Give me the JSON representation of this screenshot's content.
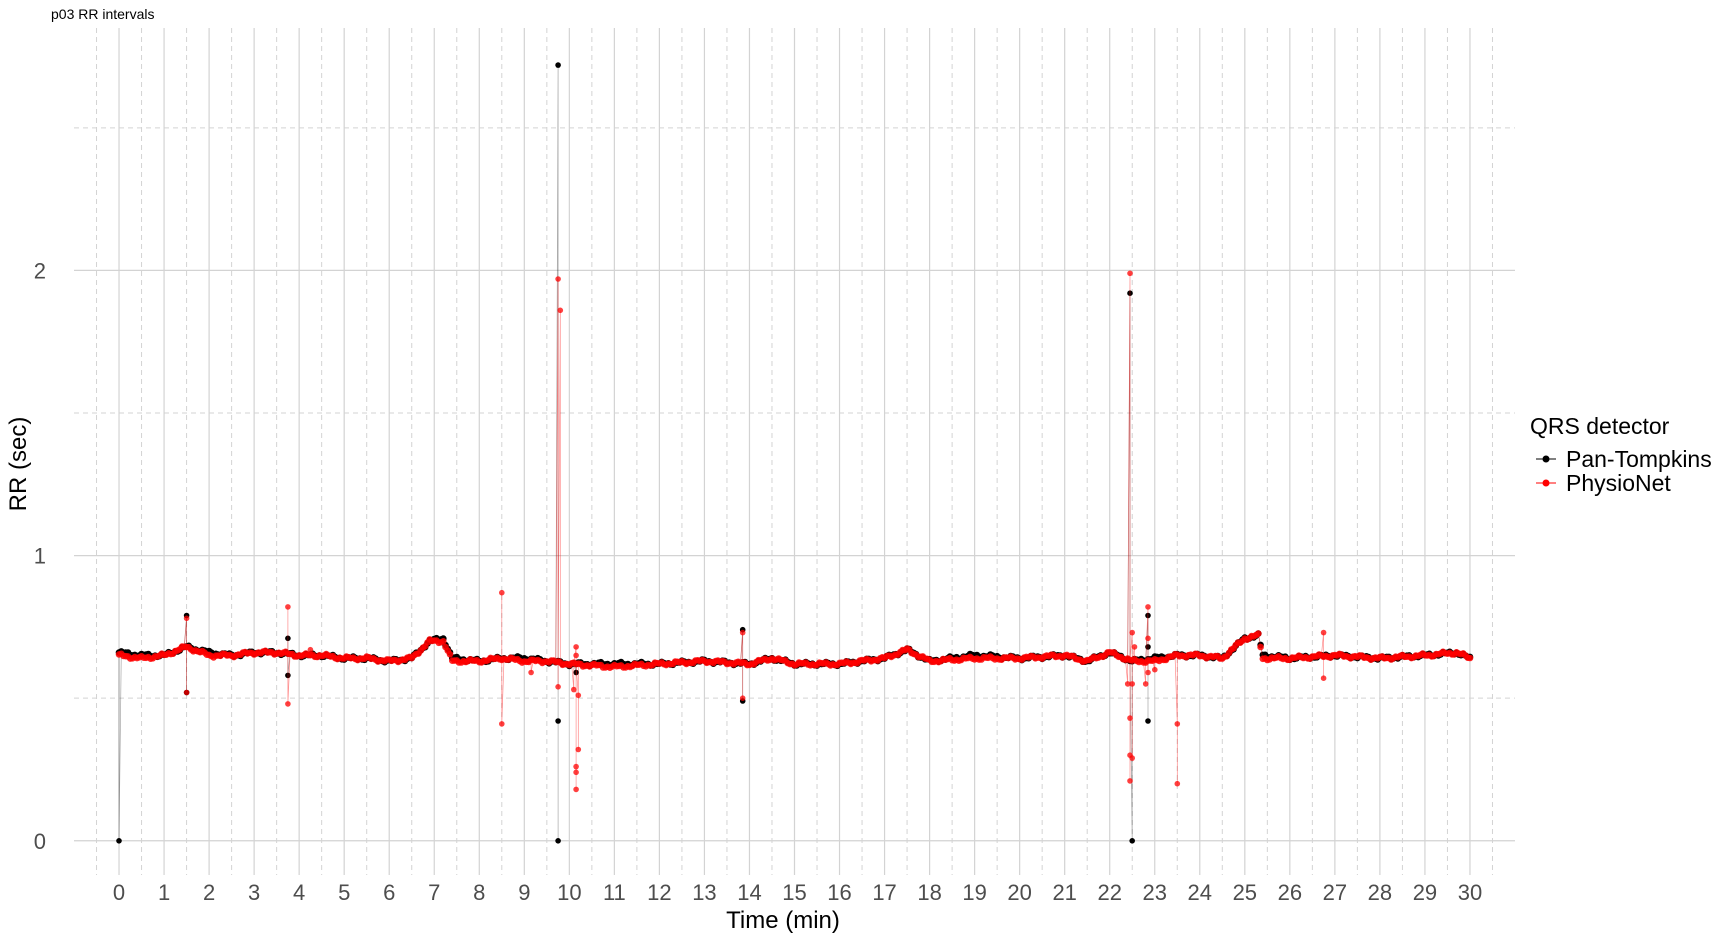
{
  "chart_data": {
    "type": "scatter",
    "title": "p03 RR intervals",
    "xlabel": "Time (min)",
    "ylabel": "RR (sec)",
    "xlim": [
      -1,
      31
    ],
    "ylim": [
      -0.12,
      2.85
    ],
    "x_ticks": [
      "0",
      "1",
      "2",
      "3",
      "4",
      "5",
      "6",
      "7",
      "8",
      "9",
      "10",
      "11",
      "12",
      "13",
      "14",
      "15",
      "16",
      "17",
      "18",
      "19",
      "20",
      "21",
      "22",
      "23",
      "24",
      "25",
      "26",
      "27",
      "28",
      "29",
      "30"
    ],
    "y_ticks": [
      "0",
      "1",
      "2"
    ],
    "y_minor": [
      0.5,
      1.5,
      2.5
    ],
    "grid": true,
    "legend": {
      "title": "QRS detector",
      "position": "right",
      "entries": [
        "Pan-Tompkins",
        "PhysioNet"
      ]
    },
    "series": [
      {
        "name": "Pan-Tompkins",
        "color": "#000000",
        "baseline": [
          [
            0,
            0.66
          ],
          [
            0.5,
            0.65
          ],
          [
            1.0,
            0.65
          ],
          [
            1.5,
            0.68
          ],
          [
            2.0,
            0.66
          ],
          [
            2.5,
            0.65
          ],
          [
            3.0,
            0.66
          ],
          [
            3.5,
            0.66
          ],
          [
            4.0,
            0.65
          ],
          [
            4.5,
            0.65
          ],
          [
            5.0,
            0.64
          ],
          [
            5.5,
            0.64
          ],
          [
            6.0,
            0.63
          ],
          [
            6.5,
            0.64
          ],
          [
            6.9,
            0.7
          ],
          [
            7.2,
            0.71
          ],
          [
            7.4,
            0.64
          ],
          [
            8.0,
            0.63
          ],
          [
            8.5,
            0.64
          ],
          [
            9.0,
            0.64
          ],
          [
            9.5,
            0.63
          ],
          [
            10.0,
            0.62
          ],
          [
            11.0,
            0.62
          ],
          [
            12.0,
            0.62
          ],
          [
            13.0,
            0.63
          ],
          [
            14.0,
            0.62
          ],
          [
            14.5,
            0.64
          ],
          [
            15.0,
            0.62
          ],
          [
            16.0,
            0.62
          ],
          [
            17.0,
            0.64
          ],
          [
            17.5,
            0.67
          ],
          [
            18.0,
            0.63
          ],
          [
            19.0,
            0.65
          ],
          [
            20.0,
            0.64
          ],
          [
            21.0,
            0.65
          ],
          [
            21.5,
            0.63
          ],
          [
            22.0,
            0.66
          ],
          [
            22.5,
            0.63
          ],
          [
            23.0,
            0.64
          ],
          [
            23.5,
            0.65
          ],
          [
            24.0,
            0.65
          ],
          [
            24.5,
            0.64
          ],
          [
            25.0,
            0.71
          ],
          [
            25.3,
            0.72
          ],
          [
            25.4,
            0.65
          ],
          [
            26.0,
            0.64
          ],
          [
            27.0,
            0.65
          ],
          [
            28.0,
            0.64
          ],
          [
            29.0,
            0.65
          ],
          [
            29.7,
            0.66
          ],
          [
            30.0,
            0.64
          ]
        ],
        "outliers": [
          [
            0,
            0.0
          ],
          [
            1.5,
            0.79
          ],
          [
            1.5,
            0.52
          ],
          [
            3.75,
            0.71
          ],
          [
            3.75,
            0.58
          ],
          [
            9.75,
            2.72
          ],
          [
            9.75,
            0.42
          ],
          [
            9.75,
            0.0
          ],
          [
            10.15,
            0.59
          ],
          [
            13.85,
            0.74
          ],
          [
            13.85,
            0.49
          ],
          [
            22.45,
            1.92
          ],
          [
            22.5,
            0.0
          ],
          [
            22.85,
            0.79
          ],
          [
            22.85,
            0.42
          ],
          [
            22.85,
            0.68
          ]
        ]
      },
      {
        "name": "PhysioNet",
        "color": "#ff0000",
        "baseline": [
          [
            0,
            0.65
          ],
          [
            0.5,
            0.64
          ],
          [
            1.0,
            0.65
          ],
          [
            1.5,
            0.68
          ],
          [
            2.0,
            0.65
          ],
          [
            2.5,
            0.65
          ],
          [
            3.0,
            0.66
          ],
          [
            3.5,
            0.66
          ],
          [
            4.0,
            0.65
          ],
          [
            4.5,
            0.65
          ],
          [
            5.0,
            0.64
          ],
          [
            5.5,
            0.64
          ],
          [
            6.0,
            0.63
          ],
          [
            6.5,
            0.64
          ],
          [
            6.9,
            0.7
          ],
          [
            7.2,
            0.7
          ],
          [
            7.4,
            0.63
          ],
          [
            8.0,
            0.63
          ],
          [
            8.5,
            0.64
          ],
          [
            9.0,
            0.63
          ],
          [
            9.5,
            0.63
          ],
          [
            10.0,
            0.62
          ],
          [
            11.0,
            0.61
          ],
          [
            12.0,
            0.62
          ],
          [
            13.0,
            0.63
          ],
          [
            14.0,
            0.62
          ],
          [
            14.5,
            0.64
          ],
          [
            15.0,
            0.62
          ],
          [
            16.0,
            0.62
          ],
          [
            17.0,
            0.64
          ],
          [
            17.5,
            0.67
          ],
          [
            18.0,
            0.63
          ],
          [
            19.0,
            0.64
          ],
          [
            20.0,
            0.64
          ],
          [
            21.0,
            0.65
          ],
          [
            21.5,
            0.63
          ],
          [
            22.0,
            0.66
          ],
          [
            22.5,
            0.63
          ],
          [
            23.0,
            0.63
          ],
          [
            23.5,
            0.65
          ],
          [
            24.0,
            0.65
          ],
          [
            24.5,
            0.64
          ],
          [
            25.0,
            0.71
          ],
          [
            25.3,
            0.72
          ],
          [
            25.4,
            0.64
          ],
          [
            26.0,
            0.64
          ],
          [
            27.0,
            0.65
          ],
          [
            28.0,
            0.64
          ],
          [
            29.0,
            0.65
          ],
          [
            29.7,
            0.66
          ],
          [
            30.0,
            0.64
          ]
        ],
        "outliers": [
          [
            1.5,
            0.78
          ],
          [
            1.5,
            0.52
          ],
          [
            3.75,
            0.82
          ],
          [
            3.75,
            0.48
          ],
          [
            4.25,
            0.67
          ],
          [
            8.5,
            0.87
          ],
          [
            8.5,
            0.41
          ],
          [
            9.15,
            0.59
          ],
          [
            9.75,
            1.97
          ],
          [
            9.8,
            1.86
          ],
          [
            9.75,
            0.54
          ],
          [
            10.1,
            0.53
          ],
          [
            10.15,
            0.68
          ],
          [
            10.15,
            0.65
          ],
          [
            10.2,
            0.51
          ],
          [
            10.2,
            0.32
          ],
          [
            10.15,
            0.26
          ],
          [
            10.15,
            0.24
          ],
          [
            10.15,
            0.18
          ],
          [
            13.85,
            0.73
          ],
          [
            13.85,
            0.5
          ],
          [
            22.45,
            1.99
          ],
          [
            22.4,
            0.55
          ],
          [
            22.45,
            0.43
          ],
          [
            22.45,
            0.3
          ],
          [
            22.45,
            0.21
          ],
          [
            22.5,
            0.73
          ],
          [
            22.5,
            0.55
          ],
          [
            22.5,
            0.29
          ],
          [
            22.55,
            0.68
          ],
          [
            22.8,
            0.55
          ],
          [
            22.85,
            0.82
          ],
          [
            22.85,
            0.59
          ],
          [
            22.85,
            0.71
          ],
          [
            23.0,
            0.6
          ],
          [
            23.5,
            0.41
          ],
          [
            23.5,
            0.2
          ],
          [
            26.75,
            0.73
          ],
          [
            26.75,
            0.57
          ]
        ]
      }
    ]
  }
}
